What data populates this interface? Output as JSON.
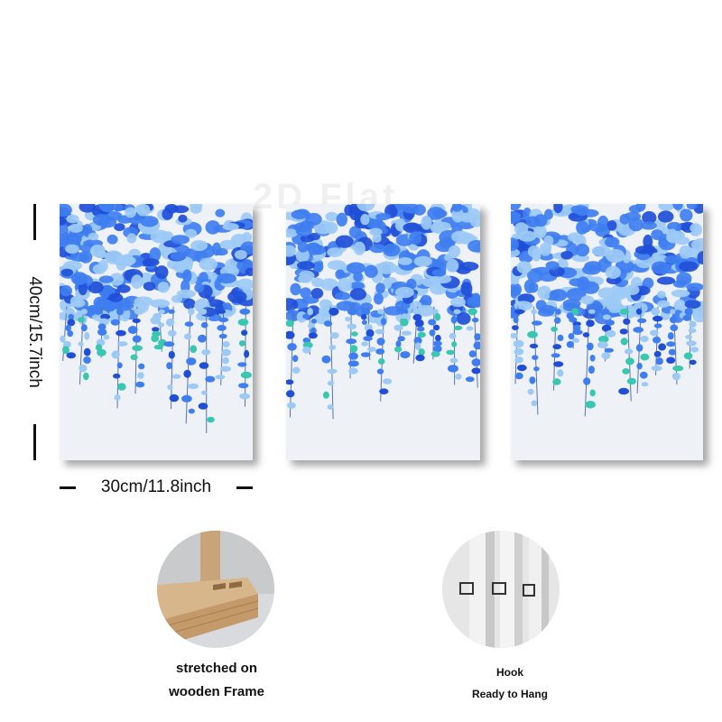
{
  "dimensions": {
    "width_label": "30cm/11.8inch",
    "height_label": "40cm/15.7inch"
  },
  "features": {
    "frame_caption_line1": "stretched on",
    "frame_caption_line2": "wooden Frame",
    "hook_caption_line1": "Hook",
    "hook_caption_line2": "Ready to Hang"
  },
  "colors": {
    "petal_dark": "#1f4fd8",
    "petal_mid": "#3f7ef0",
    "petal_light": "#9ccaf5",
    "accent_teal": "#39c7b0",
    "canvas_white": "#eef1f6"
  }
}
